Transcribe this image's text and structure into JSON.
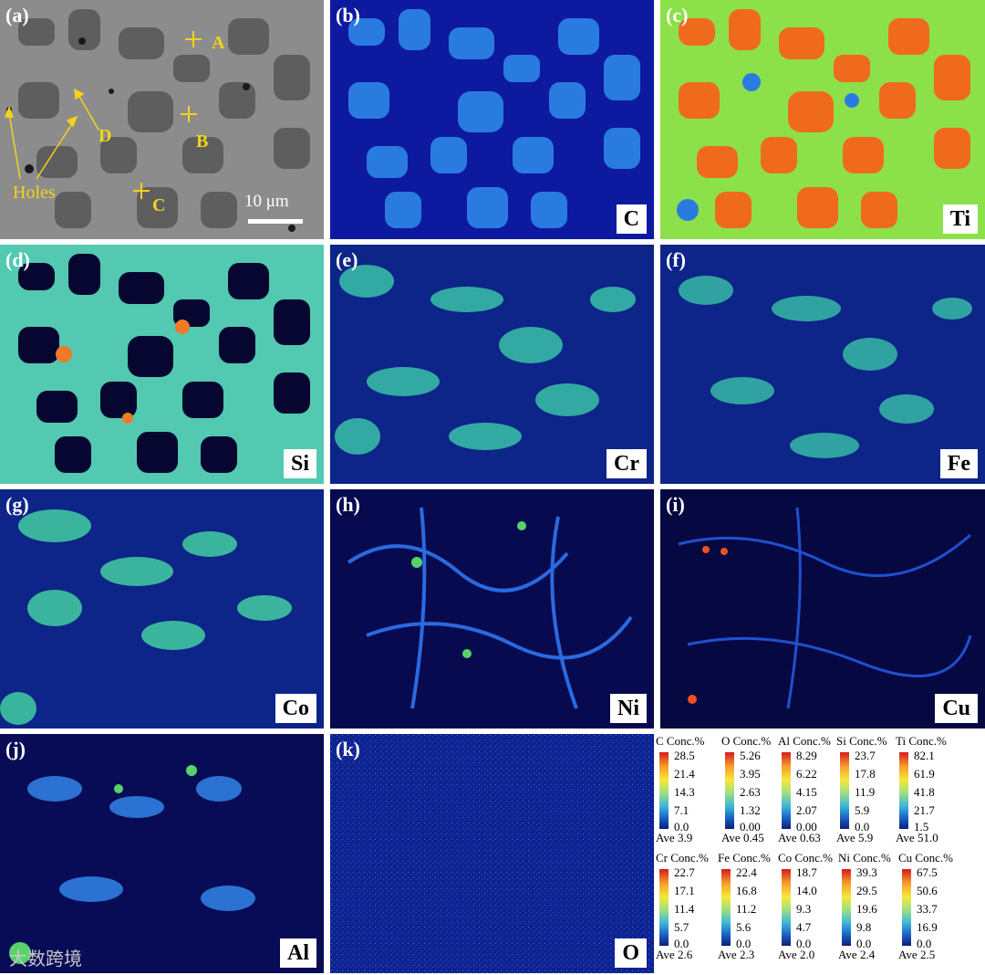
{
  "panels": [
    {
      "id": "a",
      "label": "(a)",
      "element": ""
    },
    {
      "id": "b",
      "label": "(b)",
      "element": "C"
    },
    {
      "id": "c",
      "label": "(c)",
      "element": "Ti"
    },
    {
      "id": "d",
      "label": "(d)",
      "element": "Si"
    },
    {
      "id": "e",
      "label": "(e)",
      "element": "Cr"
    },
    {
      "id": "f",
      "label": "(f)",
      "element": "Fe"
    },
    {
      "id": "g",
      "label": "(g)",
      "element": "Co"
    },
    {
      "id": "h",
      "label": "(h)",
      "element": "Ni"
    },
    {
      "id": "i",
      "label": "(i)",
      "element": "Cu"
    },
    {
      "id": "j",
      "label": "(j)",
      "element": "Al"
    },
    {
      "id": "k",
      "label": "(k)",
      "element": "O"
    }
  ],
  "sem": {
    "points": [
      "A",
      "B",
      "C",
      "D"
    ],
    "holes_label": "Holes",
    "scale_label": "10 μm"
  },
  "legends": [
    {
      "title": "C Conc.%",
      "ticks": [
        "28.5",
        "21.4",
        "14.3",
        "7.1",
        "0.0"
      ],
      "ave": "Ave 3.9"
    },
    {
      "title": "O Conc.%",
      "ticks": [
        "5.26",
        "3.95",
        "2.63",
        "1.32",
        "0.00"
      ],
      "ave": "Ave 0.45"
    },
    {
      "title": "Al Conc.%",
      "ticks": [
        "8.29",
        "6.22",
        "4.15",
        "2.07",
        "0.00"
      ],
      "ave": "Ave 0.63"
    },
    {
      "title": "Si Conc.%",
      "ticks": [
        "23.7",
        "17.8",
        "11.9",
        "5.9",
        "0.0"
      ],
      "ave": "Ave 5.9"
    },
    {
      "title": "Ti Conc.%",
      "ticks": [
        "82.1",
        "61.9",
        "41.8",
        "21.7",
        "1.5"
      ],
      "ave": "Ave 51.0"
    },
    {
      "title": "Cr Conc.%",
      "ticks": [
        "22.7",
        "17.1",
        "11.4",
        "5.7",
        "0.0"
      ],
      "ave": "Ave 2.6"
    },
    {
      "title": "Fe Conc.%",
      "ticks": [
        "22.4",
        "16.8",
        "11.2",
        "5.6",
        "0.0"
      ],
      "ave": "Ave 2.3"
    },
    {
      "title": "Co Conc.%",
      "ticks": [
        "18.7",
        "14.0",
        "9.3",
        "4.7",
        "0.0"
      ],
      "ave": "Ave 2.0"
    },
    {
      "title": "Ni Conc.%",
      "ticks": [
        "39.3",
        "29.5",
        "19.6",
        "9.8",
        "0.0"
      ],
      "ave": "Ave 2.4"
    },
    {
      "title": "Cu Conc.%",
      "ticks": [
        "67.5",
        "50.6",
        "33.7",
        "16.9",
        "0.0"
      ],
      "ave": "Ave 2.5"
    }
  ],
  "watermark": "大数跨境",
  "colors": {
    "marker": "#f2d31c",
    "low": "#0b1f78",
    "high": "#d7191c"
  }
}
